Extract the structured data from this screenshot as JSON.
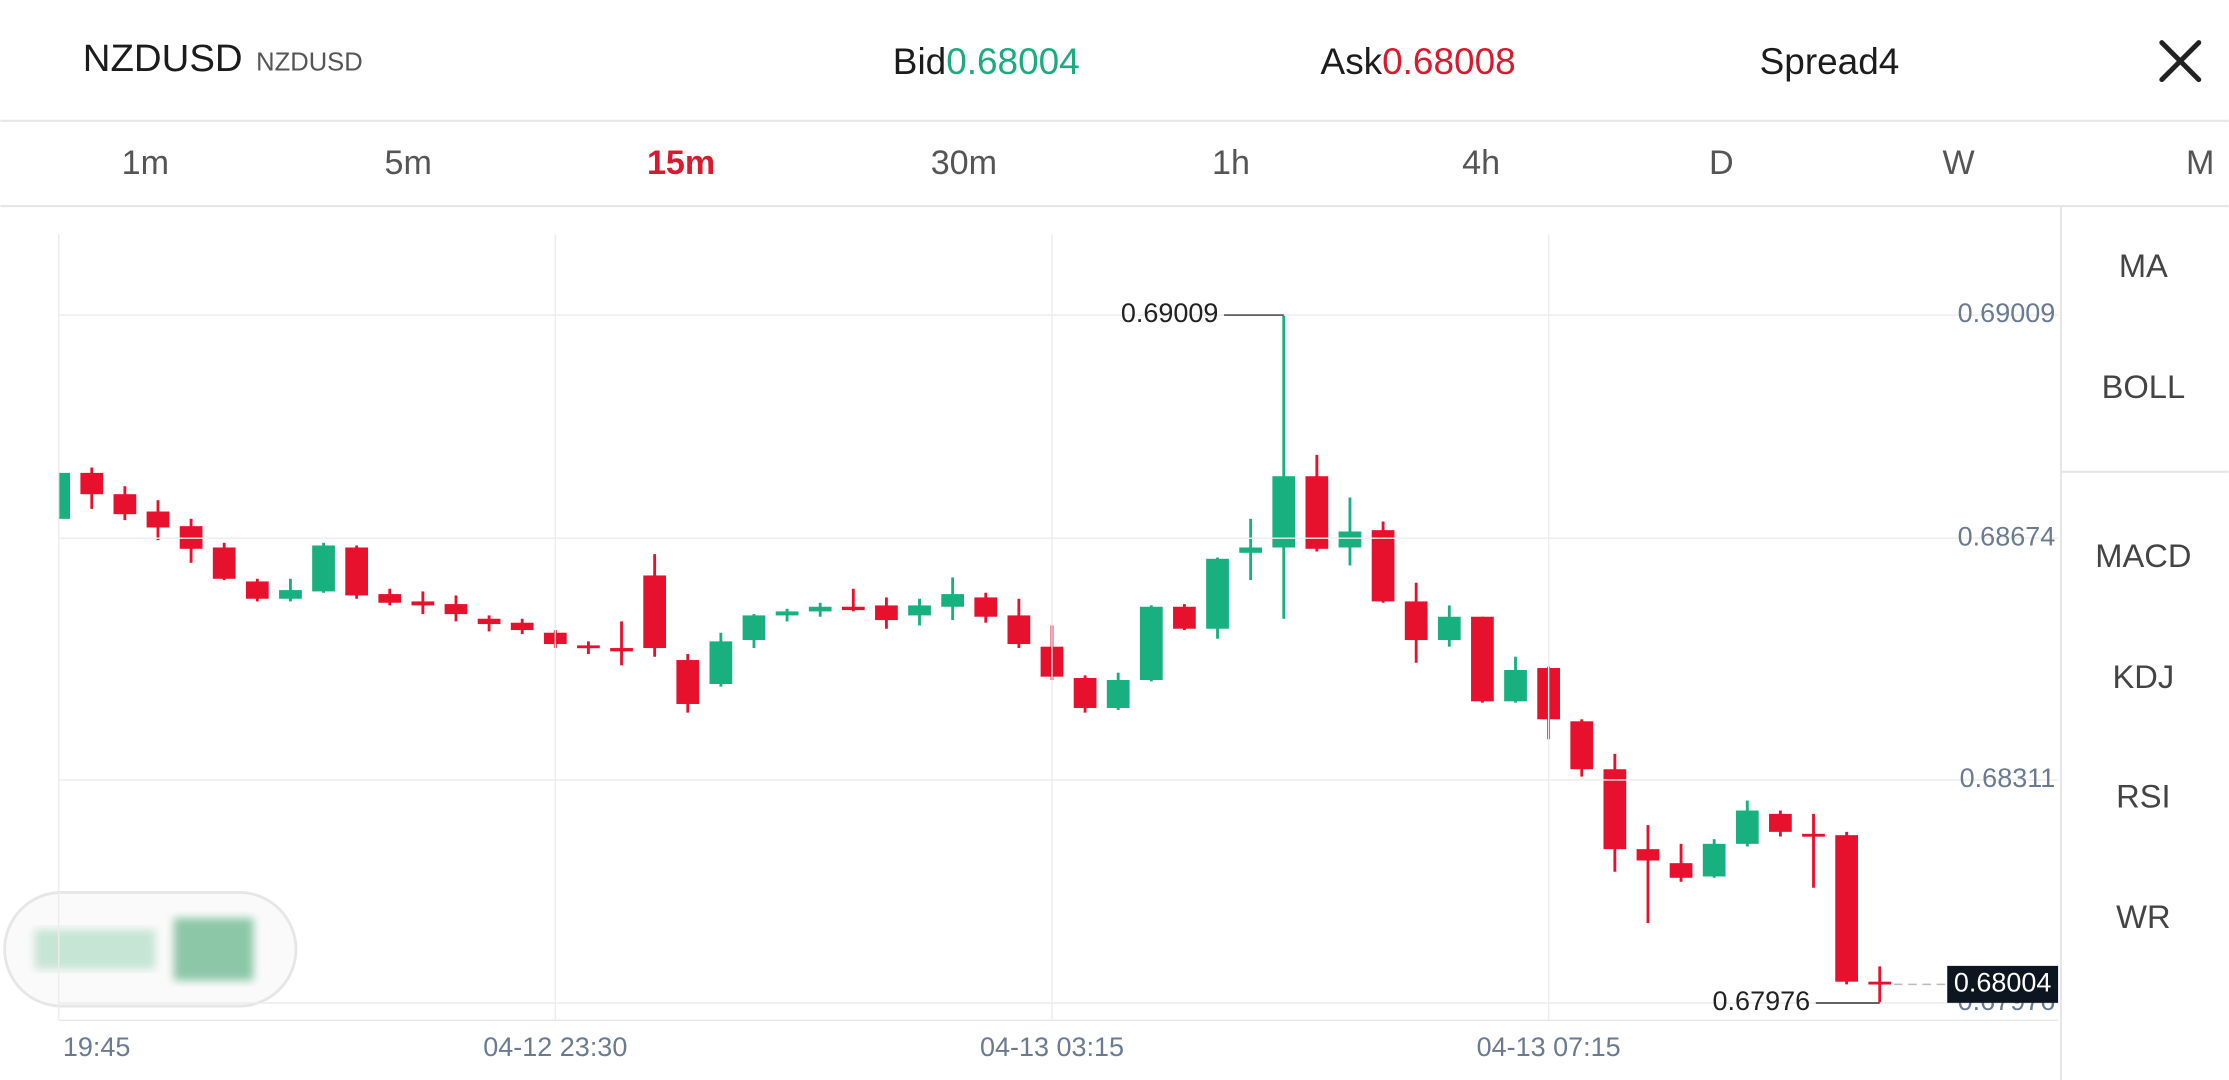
{
  "header": {
    "symbol": "NZDUSD",
    "symbol_sub": "NZDUSD",
    "bid_label": "Bid",
    "bid": 0.68004,
    "ask_label": "Ask",
    "ask": 0.68008,
    "spread_label": "Spread",
    "spread": 4
  },
  "timeframes": [
    "1m",
    "5m",
    "15m",
    "30m",
    "1h",
    "4h",
    "D",
    "W",
    "M"
  ],
  "active_timeframe": 2,
  "indicators": [
    "MA",
    "BOLL",
    "MACD",
    "KDJ",
    "RSI",
    "WR"
  ],
  "chart_data": {
    "type": "candlestick",
    "categories": [
      "19:45",
      null,
      null,
      null,
      null,
      null,
      null,
      null,
      null,
      null,
      null,
      null,
      null,
      null,
      null,
      "04-12 23:30",
      null,
      null,
      null,
      null,
      null,
      null,
      null,
      null,
      null,
      null,
      null,
      null,
      null,
      null,
      "04-13 03:15",
      null,
      null,
      null,
      null,
      null,
      null,
      null,
      null,
      null,
      null,
      null,
      null,
      null,
      null,
      "04-13 07:15",
      null,
      null,
      null,
      null,
      null,
      null,
      null,
      null,
      null,
      null
    ],
    "open": [
      0.68703,
      0.68772,
      0.6874,
      0.68714,
      0.68692,
      0.6866,
      0.68609,
      0.68583,
      0.68594,
      0.6866,
      0.6859,
      0.68579,
      0.68575,
      0.68553,
      0.68547,
      0.68532,
      0.68513,
      0.68509,
      0.68618,
      0.68491,
      0.68455,
      0.68521,
      0.68558,
      0.68564,
      0.68571,
      0.68573,
      0.68558,
      0.68571,
      0.68585,
      0.68558,
      0.68511,
      0.68464,
      0.68419,
      0.68461,
      0.68571,
      0.68538,
      0.68652,
      0.6866,
      0.68767,
      0.6866,
      0.68686,
      0.68579,
      0.68521,
      0.68556,
      0.68429,
      0.68479,
      0.68399,
      0.68327,
      0.68207,
      0.68186,
      0.68166,
      0.68215,
      0.6826,
      0.6823,
      0.68228,
      0.68008
    ],
    "high": [
      0.68772,
      0.6878,
      0.68752,
      0.68731,
      0.68703,
      0.68667,
      0.68613,
      0.68613,
      0.68667,
      0.68663,
      0.68598,
      0.68594,
      0.68588,
      0.68558,
      0.68553,
      0.68536,
      0.68519,
      0.68549,
      0.6865,
      0.685,
      0.68532,
      0.6856,
      0.68568,
      0.68577,
      0.68598,
      0.68585,
      0.68583,
      0.68615,
      0.68592,
      0.68583,
      0.68543,
      0.68468,
      0.68472,
      0.68573,
      0.68575,
      0.68645,
      0.68703,
      0.69009,
      0.68799,
      0.68735,
      0.68699,
      0.68607,
      0.68573,
      0.68556,
      0.68496,
      0.68481,
      0.68402,
      0.6835,
      0.68243,
      0.68215,
      0.68222,
      0.6828,
      0.68265,
      0.6826,
      0.68233,
      0.68031
    ],
    "low": [
      0.68703,
      0.68718,
      0.68701,
      0.68671,
      0.68637,
      0.68611,
      0.68579,
      0.68579,
      0.68592,
      0.68583,
      0.68573,
      0.6856,
      0.68549,
      0.68534,
      0.6853,
      0.68509,
      0.685,
      0.68483,
      0.68496,
      0.68412,
      0.68451,
      0.68509,
      0.68549,
      0.68556,
      0.68564,
      0.68538,
      0.68543,
      0.68551,
      0.68547,
      0.68509,
      0.68461,
      0.68412,
      0.68416,
      0.68459,
      0.68536,
      0.68523,
      0.68611,
      0.68553,
      0.68654,
      0.68633,
      0.68577,
      0.68487,
      0.68511,
      0.68427,
      0.68427,
      0.68372,
      0.68316,
      0.68173,
      0.68096,
      0.68158,
      0.68164,
      0.68211,
      0.68226,
      0.68149,
      0.68004,
      0.67976
    ],
    "close": [
      0.68772,
      0.6874,
      0.6871,
      0.6869,
      0.68658,
      0.68613,
      0.68583,
      0.68596,
      0.68663,
      0.68588,
      0.68577,
      0.68573,
      0.6856,
      0.68545,
      0.68536,
      0.68515,
      0.68509,
      0.68504,
      0.68509,
      0.68425,
      0.68519,
      0.68558,
      0.68564,
      0.68571,
      0.68566,
      0.68551,
      0.68573,
      0.6859,
      0.68556,
      0.68515,
      0.68466,
      0.68419,
      0.68461,
      0.68571,
      0.68538,
      0.68643,
      0.6866,
      0.68767,
      0.68658,
      0.68684,
      0.68579,
      0.68521,
      0.68556,
      0.68429,
      0.68476,
      0.68402,
      0.68327,
      0.68207,
      0.6819,
      0.68164,
      0.68215,
      0.68265,
      0.68233,
      0.68228,
      0.68008,
      0.68004
    ],
    "up_color": "#17b07e",
    "down_color": "#e8112d",
    "ylim": [
      0.6795,
      0.6913
    ],
    "yticks": [
      0.69009,
      0.68674,
      0.68311,
      0.67976
    ],
    "grid": true,
    "high_marker": 0.69009,
    "low_marker": 0.67976,
    "last_price": 0.68004
  }
}
